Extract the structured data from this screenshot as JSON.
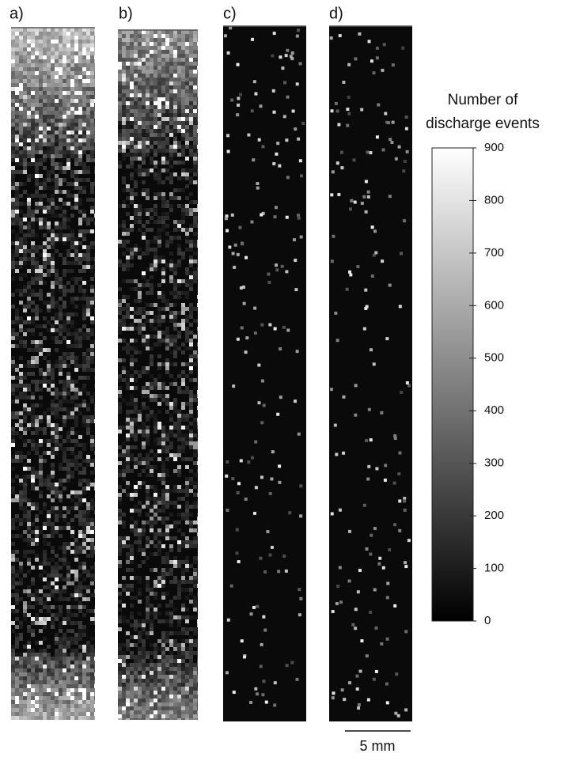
{
  "panels": [
    {
      "label": "a)"
    },
    {
      "label": "b)"
    },
    {
      "label": "c)"
    },
    {
      "label": "d)"
    }
  ],
  "colorbar": {
    "title": [
      "Number of",
      "discharge events"
    ],
    "range": [
      0,
      900
    ],
    "ticks": [
      0,
      100,
      200,
      300,
      400,
      500,
      600,
      700,
      800,
      900
    ]
  },
  "scale_bar": {
    "label": "5 mm"
  }
}
